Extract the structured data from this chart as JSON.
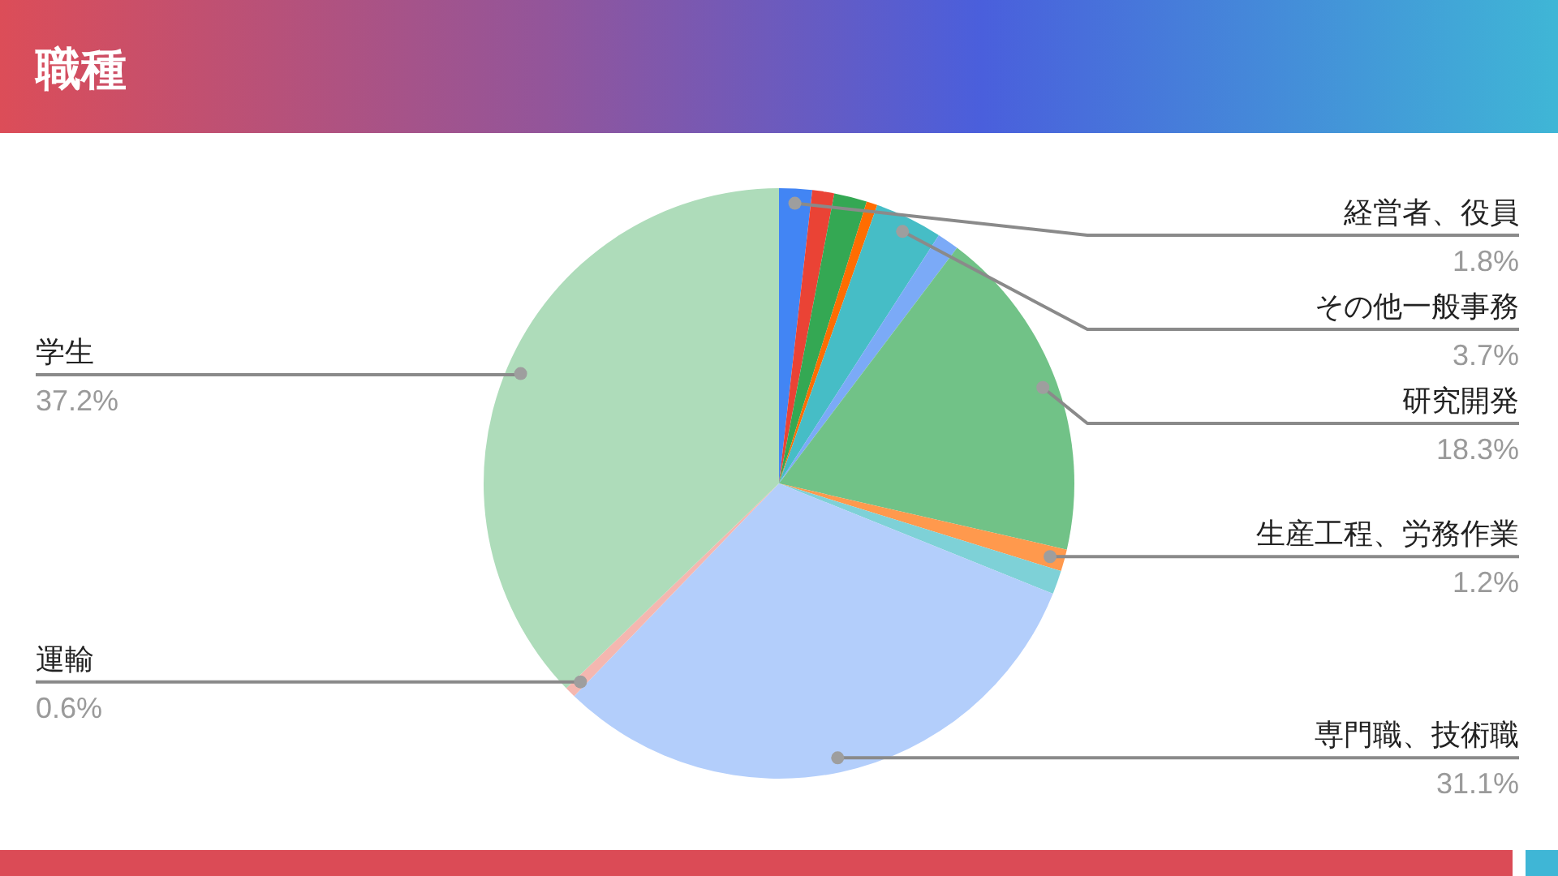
{
  "chart_data": {
    "type": "pie",
    "title": "職種",
    "categories": [
      "経営者、役員",
      null,
      null,
      null,
      "その他一般事務",
      null,
      "研究開発",
      "生産工程、労務作業",
      null,
      "専門職、技術職",
      "運輸",
      "学生"
    ],
    "values": [
      1.8,
      1.2,
      1.8,
      0.6,
      3.7,
      1.2,
      18.3,
      1.2,
      1.3,
      31.1,
      0.6,
      37.2
    ],
    "value_labels": [
      "1.8%",
      null,
      null,
      null,
      "3.7%",
      null,
      "18.3%",
      "1.2%",
      null,
      "31.1%",
      "0.6%",
      "37.2%"
    ],
    "colors": [
      "#4285f4",
      "#ea4335",
      "#34a853",
      "#ff6d01",
      "#46bdc6",
      "#7baaf7",
      "#71c287",
      "#ff994d",
      "#7ed1d7",
      "#b3cefb",
      "#f4b7b0",
      "#aedcba"
    ]
  }
}
